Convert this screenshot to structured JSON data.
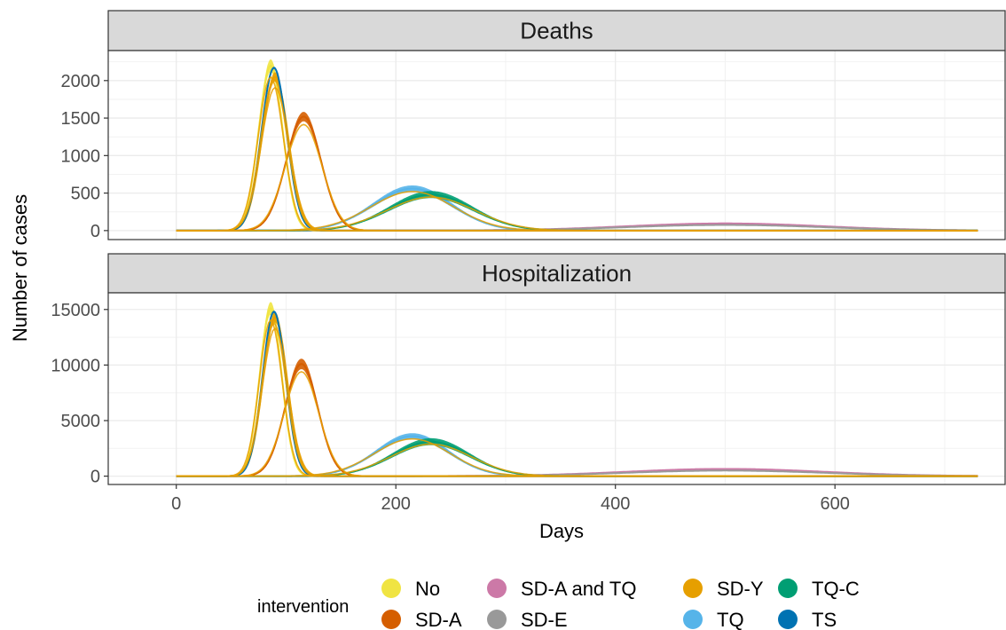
{
  "chart_data": {
    "type": "line",
    "xlabel": "Days",
    "ylabel": "Number of cases",
    "xlim": [
      -62,
      755
    ],
    "x_ticks": [
      0,
      200,
      400,
      600
    ],
    "grid": true,
    "legend": {
      "title": "intervention",
      "placement": "bottom",
      "entries": [
        {
          "label": "No",
          "color": "#F0E442"
        },
        {
          "label": "SD-A",
          "color": "#D55E00"
        },
        {
          "label": "SD-A and TQ",
          "color": "#CC79A7"
        },
        {
          "label": "SD-E",
          "color": "#999999"
        },
        {
          "label": "SD-Y",
          "color": "#E69F00"
        },
        {
          "label": "TQ",
          "color": "#56B4E9"
        },
        {
          "label": "TQ-C",
          "color": "#009E73"
        },
        {
          "label": "TS",
          "color": "#0072B2"
        }
      ]
    },
    "panels": [
      {
        "strip": "Deaths",
        "ylim": [
          -120,
          2400
        ],
        "y_ticks": [
          0,
          500,
          1000,
          1500,
          2000
        ],
        "series": [
          {
            "name": "SD-A and TQ",
            "color": "#CC79A7",
            "peak_day": 500,
            "peak": 95,
            "sd": 90,
            "band": 10
          },
          {
            "name": "SD-E",
            "color": "#999999",
            "peak_day": 500,
            "peak": 75,
            "sd": 90,
            "band": 6
          },
          {
            "name": "TQ",
            "color": "#56B4E9",
            "peak_day": 215,
            "peak": 560,
            "sd": 36,
            "band": 40
          },
          {
            "name": "TQ-C",
            "color": "#009E73",
            "peak_day": 232,
            "peak": 480,
            "sd": 38,
            "band": 45
          },
          {
            "name": "SD-A",
            "color": "#D55E00",
            "peak_day": 116,
            "peak": 1520,
            "sd": 16,
            "band": 60
          },
          {
            "name": "No",
            "color": "#F0E442",
            "peak_day": 86,
            "peak": 2200,
            "sd": 11,
            "band": 80
          },
          {
            "name": "SD-Y",
            "color": "#E69F00",
            "peak_day": 90,
            "peak": 2050,
            "sd": 12,
            "band": 60
          },
          {
            "name": "TS",
            "color": "#0072B2",
            "peak_day": 89,
            "peak": 2170,
            "sd": 11.5,
            "band": 15
          }
        ]
      },
      {
        "strip": "Hospitalization",
        "ylim": [
          -750,
          16500
        ],
        "y_ticks": [
          0,
          5000,
          10000,
          15000
        ],
        "series": [
          {
            "name": "SD-A and TQ",
            "color": "#CC79A7",
            "peak_day": 500,
            "peak": 650,
            "sd": 90,
            "band": 70
          },
          {
            "name": "SD-E",
            "color": "#999999",
            "peak_day": 500,
            "peak": 500,
            "sd": 90,
            "band": 40
          },
          {
            "name": "TQ",
            "color": "#56B4E9",
            "peak_day": 215,
            "peak": 3600,
            "sd": 33,
            "band": 250
          },
          {
            "name": "TQ-C",
            "color": "#009E73",
            "peak_day": 232,
            "peak": 3100,
            "sd": 35,
            "band": 300
          },
          {
            "name": "SD-A",
            "color": "#D55E00",
            "peak_day": 114,
            "peak": 10100,
            "sd": 15,
            "band": 450
          },
          {
            "name": "No",
            "color": "#F0E442",
            "peak_day": 86,
            "peak": 15100,
            "sd": 10,
            "band": 550
          },
          {
            "name": "SD-Y",
            "color": "#E69F00",
            "peak_day": 90,
            "peak": 14300,
            "sd": 11,
            "band": 450
          },
          {
            "name": "TS",
            "color": "#0072B2",
            "peak_day": 89,
            "peak": 14800,
            "sd": 10.5,
            "band": 100
          }
        ]
      }
    ]
  }
}
